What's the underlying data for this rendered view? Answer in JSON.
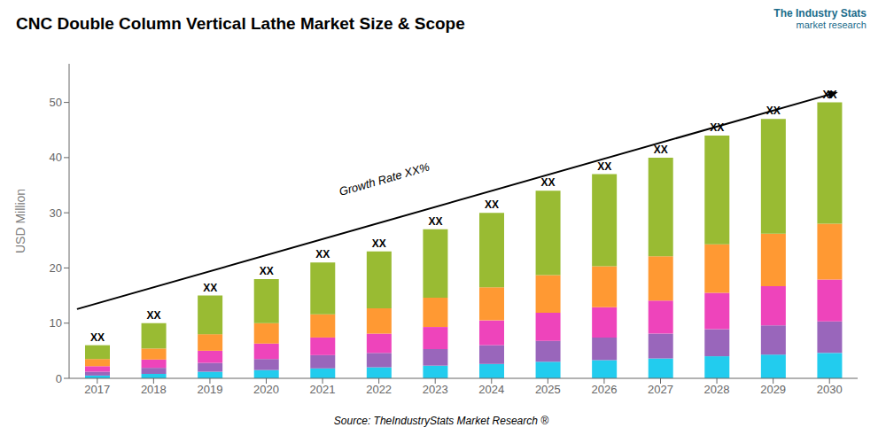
{
  "chart_data": {
    "type": "bar",
    "title": "CNC Double Column Vertical Lathe Market Size & Scope",
    "ylabel": "USD Million",
    "categories": [
      "2017",
      "2018",
      "2019",
      "2020",
      "2021",
      "2022",
      "2023",
      "2024",
      "2025",
      "2026",
      "2027",
      "2028",
      "2029",
      "2030"
    ],
    "series": [
      {
        "color": "#22CCEE",
        "values": [
          0.5,
          0.8,
          1.2,
          1.5,
          1.8,
          2.0,
          2.3,
          2.6,
          3.0,
          3.3,
          3.6,
          4.0,
          4.3,
          4.6
        ]
      },
      {
        "color": "#9966BB",
        "values": [
          0.7,
          1.1,
          1.6,
          2.0,
          2.4,
          2.6,
          3.0,
          3.4,
          3.8,
          4.1,
          4.5,
          4.9,
          5.3,
          5.7
        ]
      },
      {
        "color": "#EE44BB",
        "values": [
          1.0,
          1.5,
          2.2,
          2.8,
          3.2,
          3.5,
          4.0,
          4.5,
          5.1,
          5.5,
          6.0,
          6.6,
          7.1,
          7.6
        ]
      },
      {
        "color": "#FF9933",
        "values": [
          1.3,
          2.0,
          3.0,
          3.7,
          4.2,
          4.6,
          5.3,
          6.0,
          6.8,
          7.4,
          8.0,
          8.8,
          9.5,
          10.1
        ]
      },
      {
        "color": "#99BB33",
        "values": [
          2.5,
          4.6,
          7.0,
          8.0,
          9.4,
          10.3,
          12.4,
          13.5,
          15.3,
          16.7,
          17.9,
          19.7,
          20.8,
          22.0
        ]
      }
    ],
    "stacked": true,
    "grid": false,
    "ylim": [
      0,
      57
    ],
    "yticks": [
      0,
      10,
      20,
      30,
      40,
      50
    ],
    "annotations": {
      "growth": "Growth Rate XX%",
      "source": "Source: TheIndustryStats Market Research ®",
      "logo": [
        "The Industry Stats",
        "market research"
      ],
      "logo_color": "#1a6b8a",
      "bar_tops": [
        "XX",
        "XX",
        "XX",
        "XX",
        "XX",
        "XX",
        "XX",
        "XX",
        "XX",
        "XX",
        "XX",
        "XX",
        "XX",
        "XX"
      ]
    }
  }
}
